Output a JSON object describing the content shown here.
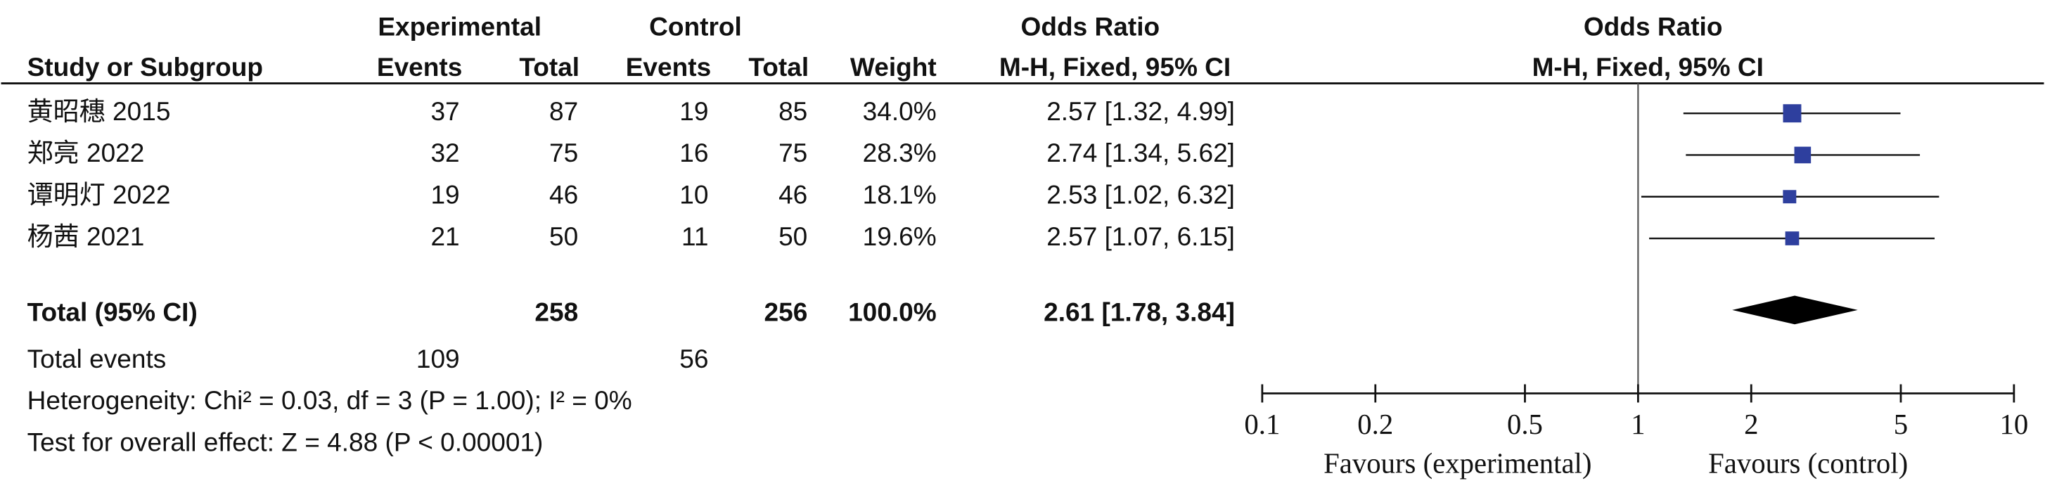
{
  "chart_data": {
    "type": "forest",
    "header": {
      "group1": "Experimental",
      "group2": "Control",
      "or_title": "Odds Ratio",
      "columns": [
        "Study or Subgroup",
        "Events",
        "Total",
        "Events",
        "Total",
        "Weight",
        "M-H, Fixed, 95% CI"
      ],
      "plot_title": "Odds Ratio",
      "plot_subtitle": "M-H, Fixed, 95% CI"
    },
    "categories": [
      "黄昭穗 2015",
      "郑亮 2022",
      "谭明灯 2022",
      "杨茜 2021"
    ],
    "exp_events": [
      37,
      32,
      19,
      21
    ],
    "exp_total": [
      87,
      75,
      46,
      50
    ],
    "ctrl_events": [
      19,
      16,
      10,
      11
    ],
    "ctrl_total": [
      85,
      75,
      46,
      50
    ],
    "weights": [
      34.0,
      28.3,
      18.1,
      19.6
    ],
    "weight_labels": [
      "34.0%",
      "28.3%",
      "18.1%",
      "19.6%"
    ],
    "values": [
      2.57,
      2.74,
      2.53,
      2.57
    ],
    "ci_low": [
      1.32,
      1.34,
      1.02,
      1.07
    ],
    "ci_high": [
      4.99,
      5.62,
      6.32,
      6.15
    ],
    "value_labels": [
      "2.57 [1.32, 4.99]",
      "2.74 [1.34, 5.62]",
      "2.53 [1.02, 6.32]",
      "2.57 [1.07, 6.15]"
    ],
    "total": {
      "label": "Total (95% CI)",
      "exp_total": 258,
      "ctrl_total": 256,
      "weight": 100.0,
      "weight_label": "100.0%",
      "value": 2.61,
      "ci_low": 1.78,
      "ci_high": 3.84,
      "value_label": "2.61 [1.78, 3.84]"
    },
    "total_events": {
      "label": "Total events",
      "exp": 109,
      "ctrl": 56
    },
    "heterogeneity": "Heterogeneity: Chi² = 0.03, df = 3 (P = 1.00); I² = 0%",
    "overall_effect": "Test for overall effect: Z = 4.88 (P < 0.00001)",
    "log_x": true,
    "xlim": [
      0.1,
      10
    ],
    "xticks": [
      0.1,
      0.2,
      0.5,
      1,
      2,
      5,
      10
    ],
    "null_line": 1,
    "x_label_left": "Favours (experimental)",
    "x_label_right": "Favours (control)",
    "color": "#2e3f9e"
  }
}
